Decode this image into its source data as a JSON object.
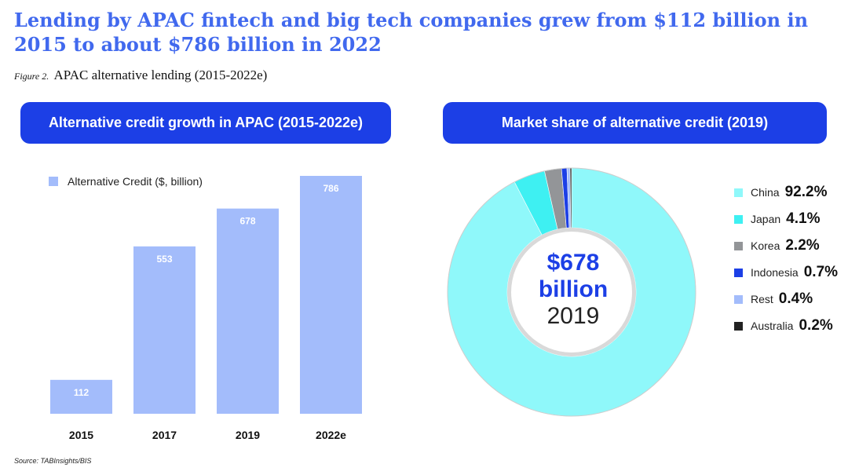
{
  "headline": "Lending by APAC fintech and big tech companies grew from $112 billion in 2015 to about $786 billion in 2022",
  "figure_label": "Figure 2.",
  "figure_title": "APAC alternative lending (2015-2022e)",
  "source": "Source: TABInsights/BIS",
  "colors": {
    "banner": "#1c3fe6",
    "headline": "#4169ee",
    "bar": "#a3bcfb"
  },
  "chart_data": [
    {
      "type": "bar",
      "title": "Alternative credit growth in APAC (2015-2022e)",
      "categories": [
        "2015",
        "2017",
        "2019",
        "2022e"
      ],
      "series": [
        {
          "name": "Alternative Credit ($, billion)",
          "values": [
            112,
            553,
            678,
            786
          ],
          "color": "#a3bcfb"
        }
      ],
      "ylim": [
        0,
        786
      ],
      "grid": false,
      "legend": "top-left"
    },
    {
      "type": "pie",
      "title": "Market share of alternative credit (2019)",
      "donut": true,
      "center_amount": "$678 billion",
      "center_year": "2019",
      "legend": "right",
      "slices": [
        {
          "label": "China",
          "value": 92.2,
          "display": "92.2%",
          "color": "#8ff8fa"
        },
        {
          "label": "Japan",
          "value": 4.1,
          "display": "4.1%",
          "color": "#3ef0f2"
        },
        {
          "label": "Korea",
          "value": 2.2,
          "display": "2.2%",
          "color": "#939598"
        },
        {
          "label": "Indonesia",
          "value": 0.7,
          "display": "0.7%",
          "color": "#1c3fe6"
        },
        {
          "label": "Rest",
          "value": 0.4,
          "display": "0.4%",
          "color": "#a3bcfb"
        },
        {
          "label": "Australia",
          "value": 0.2,
          "display": "0.2%",
          "color": "#222222"
        }
      ]
    }
  ]
}
